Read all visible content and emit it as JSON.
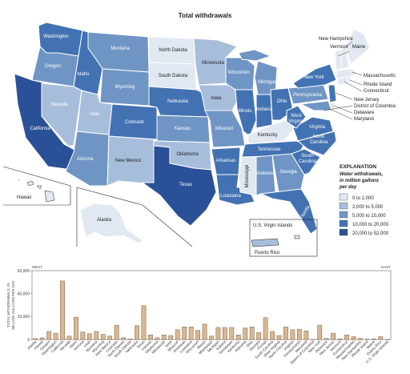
{
  "map": {
    "title": "Total withdrawals",
    "colors": {
      "c1": "#e1e8f1",
      "c2": "#a7bedb",
      "c3": "#6f95c4",
      "c4": "#4272b2",
      "c5": "#2a5198"
    },
    "states": {
      "washington": "Washington",
      "oregon": "Oregon",
      "california": "California",
      "nevada": "Nevada",
      "idaho": "Idaho",
      "montana": "Montana",
      "wyoming": "Wyoming",
      "utah": "Utah",
      "arizona": "Arizona",
      "colorado": "Colorado",
      "new_mexico": "New Mexico",
      "north_dakota": "North Dakota",
      "south_dakota": "South Dakota",
      "nebraska": "Nebraska",
      "kansas": "Kansas",
      "oklahoma": "Oklahoma",
      "texas": "Texas",
      "minnesota": "Minnesota",
      "iowa": "Iowa",
      "missouri": "Missouri",
      "arkansas": "Arkansas",
      "louisiana": "Louisiana",
      "wisconsin": "Wisconsin",
      "illinois": "Illinois",
      "michigan": "Michigan",
      "indiana": "Indiana",
      "ohio": "Ohio",
      "kentucky": "Kentucky",
      "tennessee": "Tennessee",
      "mississippi": "Mississippi",
      "alabama": "Alabama",
      "georgia": "Georgia",
      "florida": "Florida",
      "south_carolina_1": "South",
      "south_carolina_2": "Carolina",
      "north_carolina_1": "North",
      "north_carolina_2": "Carolina",
      "virginia": "Virginia",
      "west_virginia_1": "West",
      "west_virginia_2": "Virginia",
      "pennsylvania": "Pennsylvania",
      "new_york": "New York",
      "maine": "Maine",
      "hawaii": "Hawaii",
      "alaska": "Alaska",
      "usvi": "U.S. Virgin Islands",
      "puerto_rico": "Puerto Rico"
    },
    "callouts": {
      "new_hampshire": "New Hampshire",
      "vermont": "Vermont",
      "massachusetts": "Massachusetts",
      "rhode_island": "Rhode Island",
      "connecticut": "Connecticut",
      "new_jersey": "New Jersey",
      "dc": "District of Columbia",
      "delaware": "Delaware",
      "maryland": "Maryland"
    },
    "legend": {
      "title": "EXPLANATION",
      "subtitle_1": "Water withdrawals,",
      "subtitle_2": "in million gallons",
      "subtitle_3": "per day",
      "items": [
        {
          "label": "0 to 2,000",
          "color": "#e1e8f1"
        },
        {
          "label": "2,000 to 5,000",
          "color": "#a7bedb"
        },
        {
          "label": "5,000 to 10,000",
          "color": "#6f95c4"
        },
        {
          "label": "10,000 to 20,000",
          "color": "#4272b2"
        },
        {
          "label": "20,000 to 52,000",
          "color": "#2a5198"
        }
      ]
    }
  },
  "chart_data": {
    "type": "bar",
    "ylabel_1": "TOTAL WITHDRAWALS, IN",
    "ylabel_2": "MILLION GALLONS PER DAY",
    "west_label": "WEST",
    "east_label": "EAST",
    "ylim": [
      0,
      60000
    ],
    "yticks": [
      "0",
      "20,000",
      "40,000",
      "60,000"
    ],
    "bar_color": "#d8b894",
    "categories": [
      "Alaska",
      "Hawaii",
      "Oregon",
      "Washington",
      "California",
      "Nevada",
      "Idaho",
      "Arizona",
      "Utah",
      "Montana",
      "Wyoming",
      "New Mexico",
      "Colorado",
      "North Dakota",
      "South Dakota",
      "Nebraska",
      "Texas",
      "Kansas",
      "Oklahoma",
      "Minnesota",
      "Iowa",
      "Missouri",
      "Arkansas",
      "Louisiana",
      "Wisconsin",
      "Illinois",
      "Mississippi",
      "Michigan",
      "Indiana",
      "Tennessee",
      "Kentucky",
      "Alabama",
      "Ohio",
      "Georgia",
      "Florida",
      "South Carolina",
      "West Virginia",
      "North Carolina",
      "Virginia",
      "Pennsylvania",
      "Maryland",
      "District of Columbia",
      "New York",
      "Delaware",
      "New Jersey",
      "Vermont",
      "Connecticut",
      "Massachusetts",
      "New Hampshire",
      "Rhode Island",
      "Maine",
      "Puerto Rico",
      "U.S. Virgin Islands"
    ],
    "values": [
      800,
      1500,
      7000,
      5500,
      51000,
      3000,
      19500,
      6500,
      5000,
      7000,
      4500,
      3000,
      12500,
      1500,
      600,
      12000,
      29500,
      4000,
      1500,
      4000,
      3500,
      8500,
      11000,
      11000,
      8000,
      13500,
      3000,
      10500,
      10500,
      10500,
      4000,
      10000,
      11000,
      6000,
      19000,
      7000,
      3500,
      11000,
      8500,
      9000,
      7500,
      100,
      12500,
      1000,
      5500,
      600,
      4000,
      2500,
      1000,
      300,
      600,
      2500,
      100
    ]
  }
}
